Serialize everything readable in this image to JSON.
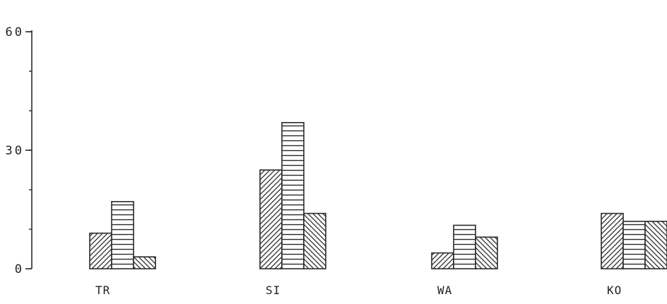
{
  "chart_data": {
    "type": "bar",
    "title": "",
    "xlabel": "",
    "ylabel": "",
    "ylim": [
      0,
      60
    ],
    "yticks": [
      {
        "value": 0,
        "label": "0"
      },
      {
        "value": 30,
        "label": "30"
      },
      {
        "value": 60,
        "label": "60"
      }
    ],
    "categories": [
      "TR",
      "SI",
      "WA",
      "KO"
    ],
    "series": [
      {
        "pattern": "diagonal-up",
        "values": [
          9,
          25,
          4,
          14
        ]
      },
      {
        "pattern": "horizontal",
        "values": [
          17,
          37,
          11,
          12
        ]
      },
      {
        "pattern": "diagonal-down",
        "values": [
          3,
          14,
          8,
          12
        ]
      }
    ],
    "grid": false,
    "legend": "none",
    "colors": {
      "ink": "#2a2a2a",
      "background": "#ffffff"
    }
  }
}
